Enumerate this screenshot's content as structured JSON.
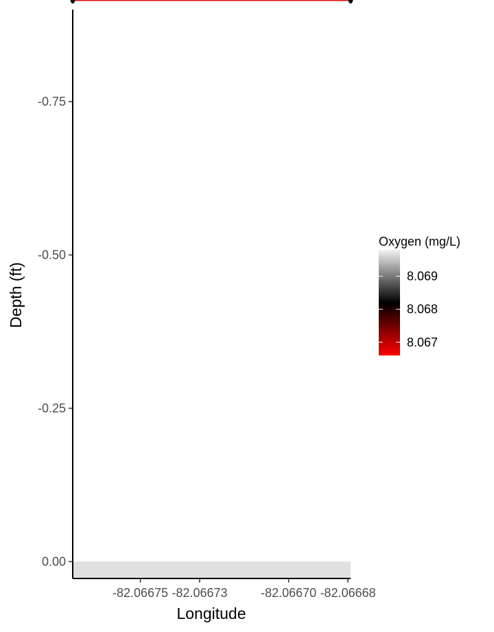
{
  "chart_data": {
    "type": "line",
    "xlabel": "Longitude",
    "ylabel": "Depth (ft)",
    "x_ticks": [
      {
        "value": -82.06675,
        "label": "-82.06675"
      },
      {
        "value": -82.06673,
        "label": "-82.06673"
      },
      {
        "value": -82.0667,
        "label": "-82.06670"
      },
      {
        "value": -82.06668,
        "label": "-82.06668"
      }
    ],
    "y_ticks": [
      {
        "value": 0,
        "label": "0.00"
      },
      {
        "value": -0.25,
        "label": "-0.25"
      },
      {
        "value": -0.5,
        "label": "-0.50"
      },
      {
        "value": -0.75,
        "label": "-0.75"
      }
    ],
    "xlim": [
      -82.0667728,
      -82.0666791
    ],
    "ylim": [
      0.0275,
      -0.9
    ],
    "y_reversed": true,
    "series": [
      {
        "x": [
          -82.0667728,
          -82.0666791
        ],
        "y": [
          -0.92,
          -0.92
        ],
        "color_value": [
          8.0672,
          8.0672
        ],
        "oxygen_band": [
          8.0666,
          8.0698
        ]
      }
    ],
    "surface_band": {
      "y": [
        0,
        0.027
      ],
      "color": "#e0e0e0"
    },
    "colorbar": {
      "title": "Oxygen (mg/L)",
      "range": [
        8.0666,
        8.0698
      ],
      "ticks": [
        {
          "value": 8.067,
          "label": "8.067"
        },
        {
          "value": 8.068,
          "label": "8.068"
        },
        {
          "value": 8.069,
          "label": "8.069"
        }
      ],
      "colors": [
        "#ff0000",
        "#000000",
        "#f2f2f2"
      ],
      "placement": "right"
    }
  }
}
